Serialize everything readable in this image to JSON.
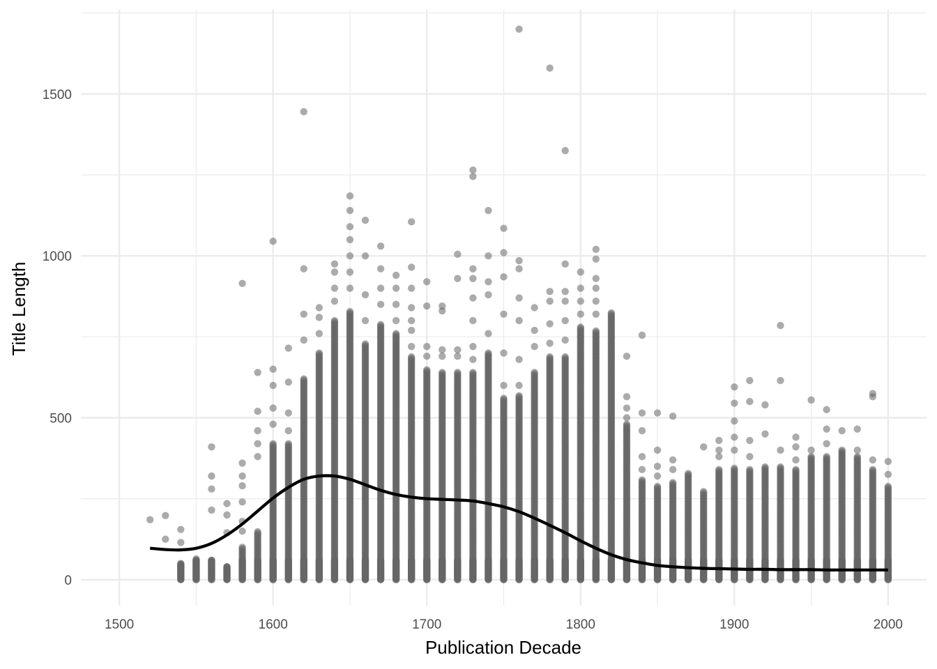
{
  "chart_data": {
    "type": "scatter",
    "title": "",
    "xlabel": "Publication Decade",
    "ylabel": "Title Length",
    "xlim": [
      1475,
      2025
    ],
    "ylim": [
      -80,
      1760
    ],
    "x_ticks": [
      1500,
      1600,
      1700,
      1800,
      1900,
      2000
    ],
    "x_tick_labels": [
      "1500",
      "1600",
      "1700",
      "1800",
      "1900",
      "2000"
    ],
    "y_ticks": [
      0,
      500,
      1000,
      1500
    ],
    "y_tick_labels": [
      "0",
      "500",
      "1000",
      "1500"
    ],
    "grid": true,
    "legend": "none",
    "colors": {
      "points": "#666666",
      "smooth": "#000000",
      "grid": "#ebebeb"
    },
    "series": [
      {
        "kind": "points",
        "decade_columns": [
          {
            "x": 1520,
            "max": 0,
            "outliers": [
              185
            ]
          },
          {
            "x": 1530,
            "max": 0,
            "outliers": [
              125,
              198
            ]
          },
          {
            "x": 1540,
            "max": 50,
            "outliers": [
              115,
              155
            ]
          },
          {
            "x": 1550,
            "max": 65,
            "outliers": []
          },
          {
            "x": 1560,
            "max": 60,
            "outliers": [
              215,
              280,
              320,
              410
            ]
          },
          {
            "x": 1570,
            "max": 40,
            "outliers": [
              145,
              200,
              235
            ]
          },
          {
            "x": 1580,
            "max": 100,
            "outliers": [
              150,
              180,
              240,
              290,
              320,
              360,
              915
            ]
          },
          {
            "x": 1590,
            "max": 150,
            "outliers": [
              380,
              420,
              460,
              520,
              640
            ]
          },
          {
            "x": 1600,
            "max": 420,
            "outliers": [
              480,
              530,
              600,
              650,
              1045
            ]
          },
          {
            "x": 1610,
            "max": 420,
            "outliers": [
              460,
              515,
              610,
              715
            ]
          },
          {
            "x": 1620,
            "max": 620,
            "outliers": [
              740,
              820,
              960,
              1445
            ]
          },
          {
            "x": 1630,
            "max": 700,
            "outliers": [
              760,
              810,
              840
            ]
          },
          {
            "x": 1640,
            "max": 800,
            "outliers": [
              860,
              900,
              950,
              975
            ]
          },
          {
            "x": 1650,
            "max": 830,
            "outliers": [
              900,
              950,
              1000,
              1050,
              1090,
              1140,
              1185
            ]
          },
          {
            "x": 1660,
            "max": 730,
            "outliers": [
              800,
              880,
              1000,
              1110
            ]
          },
          {
            "x": 1670,
            "max": 790,
            "outliers": [
              850,
              900,
              960,
              1030
            ]
          },
          {
            "x": 1680,
            "max": 760,
            "outliers": [
              800,
              850,
              900,
              940
            ]
          },
          {
            "x": 1690,
            "max": 690,
            "outliers": [
              720,
              770,
              800,
              840,
              900,
              965,
              1105
            ]
          },
          {
            "x": 1700,
            "max": 650,
            "outliers": [
              690,
              720,
              845,
              920
            ]
          },
          {
            "x": 1710,
            "max": 640,
            "outliers": [
              690,
              710,
              830,
              845
            ]
          },
          {
            "x": 1720,
            "max": 640,
            "outliers": [
              690,
              710,
              930,
              1005
            ]
          },
          {
            "x": 1730,
            "max": 640,
            "outliers": [
              680,
              720,
              800,
              870,
              930,
              960,
              1245,
              1265
            ]
          },
          {
            "x": 1740,
            "max": 700,
            "outliers": [
              760,
              880,
              920,
              1000,
              1140
            ]
          },
          {
            "x": 1750,
            "max": 560,
            "outliers": [
              600,
              700,
              820,
              935,
              1010,
              1085
            ]
          },
          {
            "x": 1760,
            "max": 570,
            "outliers": [
              600,
              680,
              800,
              870,
              960,
              985,
              1700
            ]
          },
          {
            "x": 1770,
            "max": 640,
            "outliers": [
              720,
              770,
              840
            ]
          },
          {
            "x": 1780,
            "max": 690,
            "outliers": [
              730,
              790,
              860,
              890,
              1580
            ]
          },
          {
            "x": 1790,
            "max": 690,
            "outliers": [
              740,
              800,
              860,
              890,
              975,
              1325
            ]
          },
          {
            "x": 1800,
            "max": 780,
            "outliers": [
              820,
              860,
              900,
              950
            ]
          },
          {
            "x": 1810,
            "max": 770,
            "outliers": [
              820,
              860,
              900,
              930,
              990,
              1020
            ]
          },
          {
            "x": 1820,
            "max": 825,
            "outliers": []
          },
          {
            "x": 1830,
            "max": 480,
            "outliers": [
              500,
              530,
              565,
              690
            ]
          },
          {
            "x": 1840,
            "max": 310,
            "outliers": [
              340,
              380,
              460,
              515,
              755
            ]
          },
          {
            "x": 1850,
            "max": 290,
            "outliers": [
              320,
              350,
              400,
              515
            ]
          },
          {
            "x": 1860,
            "max": 300,
            "outliers": [
              340,
              370,
              505
            ]
          },
          {
            "x": 1870,
            "max": 330,
            "outliers": []
          },
          {
            "x": 1880,
            "max": 275,
            "outliers": [
              410
            ]
          },
          {
            "x": 1890,
            "max": 340,
            "outliers": [
              380,
              400,
              430
            ]
          },
          {
            "x": 1900,
            "max": 345,
            "outliers": [
              400,
              440,
              490,
              545,
              595
            ]
          },
          {
            "x": 1910,
            "max": 340,
            "outliers": [
              380,
              430,
              550,
              615
            ]
          },
          {
            "x": 1920,
            "max": 350,
            "outliers": [
              450,
              540
            ]
          },
          {
            "x": 1930,
            "max": 350,
            "outliers": [
              400,
              615,
              785
            ]
          },
          {
            "x": 1940,
            "max": 340,
            "outliers": [
              370,
              410,
              440
            ]
          },
          {
            "x": 1950,
            "max": 380,
            "outliers": [
              400,
              555
            ]
          },
          {
            "x": 1960,
            "max": 380,
            "outliers": [
              420,
              465,
              525
            ]
          },
          {
            "x": 1970,
            "max": 400,
            "outliers": [
              460
            ]
          },
          {
            "x": 1980,
            "max": 380,
            "outliers": [
              400,
              465
            ]
          },
          {
            "x": 1990,
            "max": 340,
            "outliers": [
              370,
              565,
              575
            ]
          },
          {
            "x": 2000,
            "max": 290,
            "outliers": [
              325,
              365
            ]
          }
        ]
      },
      {
        "kind": "smooth",
        "x": [
          1520,
          1530,
          1540,
          1550,
          1560,
          1570,
          1580,
          1590,
          1600,
          1610,
          1620,
          1630,
          1640,
          1650,
          1660,
          1670,
          1680,
          1690,
          1700,
          1710,
          1720,
          1730,
          1740,
          1750,
          1760,
          1770,
          1780,
          1790,
          1800,
          1810,
          1820,
          1830,
          1840,
          1850,
          1860,
          1870,
          1880,
          1890,
          1900,
          1910,
          1920,
          1930,
          1940,
          1950,
          1960,
          1970,
          1980,
          1990,
          2000
        ],
        "y": [
          97,
          93,
          92,
          97,
          112,
          138,
          172,
          212,
          252,
          285,
          310,
          320,
          320,
          310,
          293,
          276,
          263,
          255,
          250,
          248,
          246,
          243,
          235,
          225,
          210,
          190,
          168,
          145,
          120,
          97,
          77,
          62,
          52,
          44,
          40,
          37,
          35,
          34,
          33,
          32,
          32,
          31,
          31,
          31,
          30,
          30,
          30,
          30,
          30
        ]
      }
    ]
  }
}
